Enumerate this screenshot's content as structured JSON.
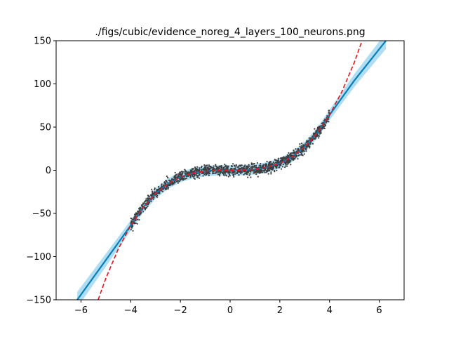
{
  "chart_data": {
    "type": "line",
    "title": "./figs/cubic/evidence_noreg_4_layers_100_neurons.png",
    "xlabel": "",
    "ylabel": "",
    "xlim": [
      -7,
      7
    ],
    "ylim": [
      -150,
      150
    ],
    "xticks": [
      -6,
      -4,
      -2,
      0,
      2,
      4,
      6
    ],
    "yticks": [
      -150,
      -100,
      -50,
      0,
      50,
      100,
      150
    ],
    "grid": false,
    "legend": "none",
    "colors": {
      "true_function": "#e8141a",
      "prediction": "#0a7fb3",
      "uncertainty": "#4db6e6",
      "training_points": "#3d3d3d"
    },
    "series": [
      {
        "role": "true_function",
        "style": "dashed",
        "x": [
          -5.31,
          -5,
          -4.5,
          -4,
          -3.5,
          -3,
          -2.5,
          -2,
          -1.5,
          -1,
          -0.5,
          0,
          0.5,
          1,
          1.5,
          2,
          2.5,
          3,
          3.5,
          4,
          4.5,
          5,
          5.31
        ],
        "y": [
          -150,
          -125,
          -91.1,
          -64,
          -42.9,
          -27,
          -15.6,
          -8,
          -3.4,
          -1,
          -0.1,
          0,
          0.1,
          1,
          3.4,
          8,
          15.6,
          27,
          42.9,
          64,
          91.1,
          125,
          150
        ]
      },
      {
        "role": "prediction",
        "style": "solid",
        "x": [
          -6.15,
          -5,
          -4,
          -3.5,
          -3,
          -2.5,
          -2,
          -1.5,
          -1,
          -0.5,
          0,
          0.5,
          1,
          1.5,
          2,
          2.5,
          3,
          3.5,
          4,
          5,
          6.27
        ],
        "y": [
          -150,
          -104,
          -64,
          -43,
          -27,
          -15.6,
          -8,
          -3.4,
          -1,
          -0.1,
          0,
          0.1,
          1,
          3.4,
          8,
          15.6,
          27,
          43,
          64,
          104,
          150
        ]
      }
    ],
    "training_points": {
      "x_range": [
        -4,
        4
      ],
      "function": "y = x^3",
      "noise_std": 3
    }
  }
}
